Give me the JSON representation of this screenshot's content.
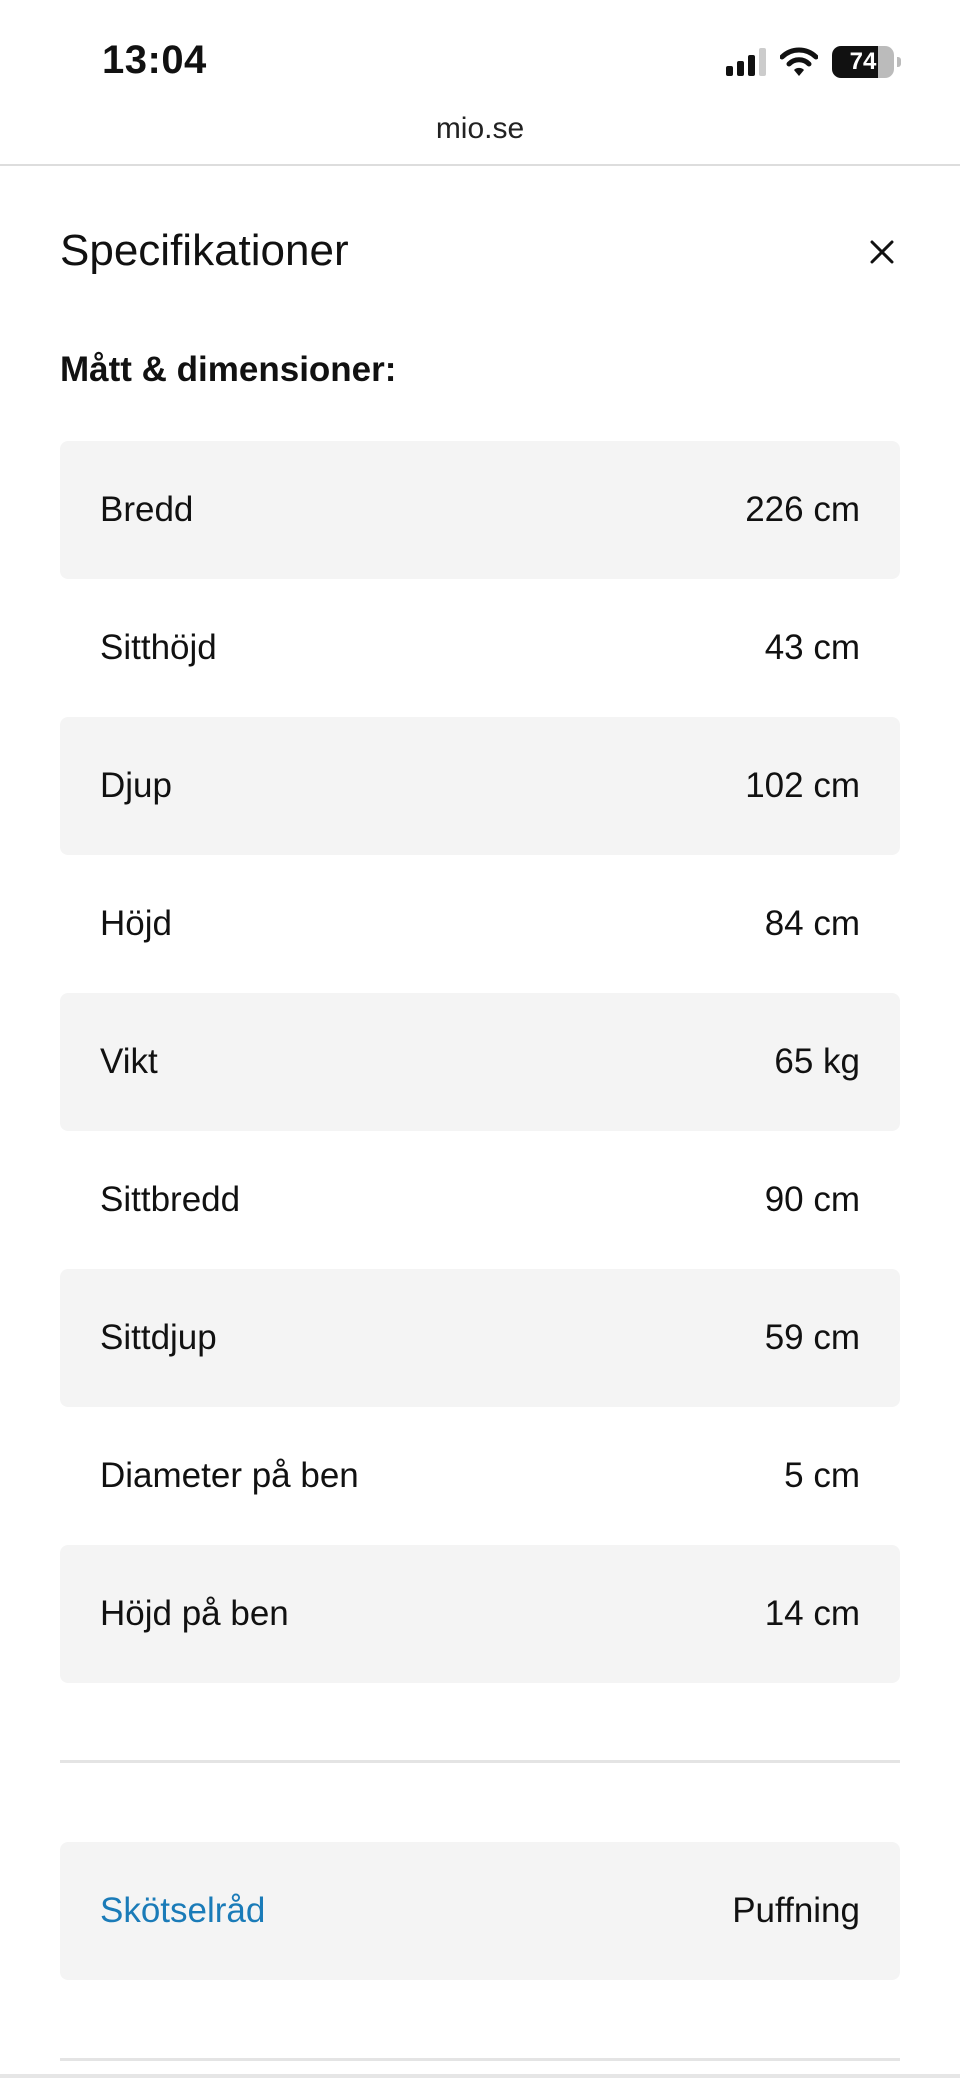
{
  "status_bar": {
    "time": "13:04",
    "battery": "74",
    "icons": [
      "signal-icon",
      "wifi-icon",
      "battery-icon"
    ]
  },
  "browser": {
    "url": "mio.se"
  },
  "panel": {
    "title": "Specifikationer",
    "close_icon": "close-icon",
    "section_title": "Mått & dimensioner:",
    "specs": [
      {
        "label": "Bredd",
        "value": "226 cm"
      },
      {
        "label": "Sitthöjd",
        "value": "43 cm"
      },
      {
        "label": "Djup",
        "value": "102 cm"
      },
      {
        "label": "Höjd",
        "value": "84 cm"
      },
      {
        "label": "Vikt",
        "value": "65 kg"
      },
      {
        "label": "Sittbredd",
        "value": "90 cm"
      },
      {
        "label": "Sittdjup",
        "value": "59 cm"
      },
      {
        "label": "Diameter på ben",
        "value": "5 cm"
      },
      {
        "label": "Höjd på ben",
        "value": "14 cm"
      }
    ],
    "care": {
      "label": "Skötselråd",
      "value": "Puffning"
    }
  },
  "colors": {
    "link": "#1a7bb8",
    "row_bg": "#f4f4f4"
  }
}
